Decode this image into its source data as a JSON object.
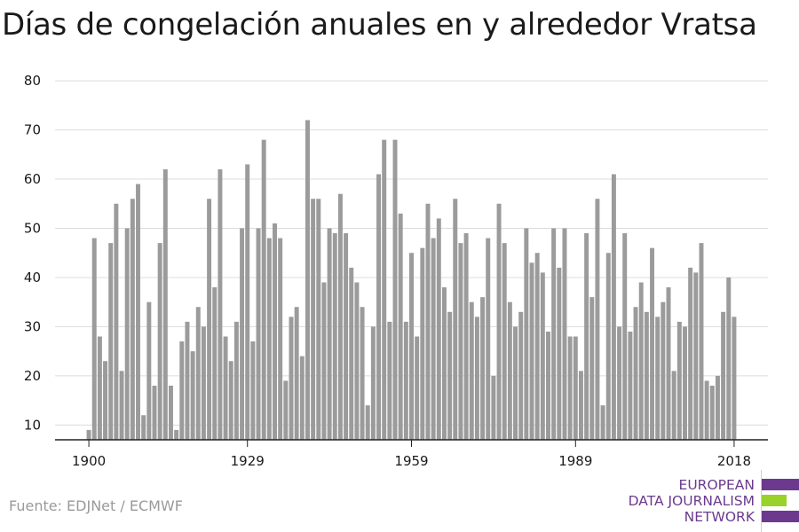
{
  "title": "Días de congelación anuales en y alrededor Vratsa",
  "source": "Fuente: EDJNet / ECMWF",
  "logo": {
    "lines": [
      "EUROPEAN",
      "DATA JOURNALISM",
      "NETWORK"
    ],
    "colors": {
      "purple": "#6b3a8e",
      "green": "#9bd12b"
    }
  },
  "colors": {
    "bar": "#9b9b9b",
    "grid": "#dcdcdc",
    "axis": "#222222",
    "text": "#1a1a1a"
  },
  "chart_data": {
    "type": "bar",
    "title": "Días de congelación anuales en y alrededor Vratsa",
    "xlabel": "",
    "ylabel": "",
    "x": [
      1900,
      1901,
      1902,
      1903,
      1904,
      1905,
      1906,
      1907,
      1908,
      1909,
      1910,
      1911,
      1912,
      1913,
      1914,
      1915,
      1916,
      1917,
      1918,
      1919,
      1920,
      1921,
      1922,
      1923,
      1924,
      1925,
      1926,
      1927,
      1928,
      1929,
      1930,
      1931,
      1932,
      1933,
      1934,
      1935,
      1936,
      1937,
      1938,
      1939,
      1940,
      1941,
      1942,
      1943,
      1944,
      1945,
      1946,
      1947,
      1948,
      1949,
      1950,
      1951,
      1952,
      1953,
      1954,
      1955,
      1956,
      1957,
      1958,
      1959,
      1960,
      1961,
      1962,
      1963,
      1964,
      1965,
      1966,
      1967,
      1968,
      1969,
      1970,
      1971,
      1972,
      1973,
      1974,
      1975,
      1976,
      1977,
      1978,
      1979,
      1980,
      1981,
      1982,
      1983,
      1984,
      1985,
      1986,
      1987,
      1988,
      1989,
      1990,
      1991,
      1992,
      1993,
      1994,
      1995,
      1996,
      1997,
      1998,
      1999,
      2000,
      2001,
      2002,
      2003,
      2004,
      2005,
      2006,
      2007,
      2008,
      2009,
      2010,
      2011,
      2012,
      2013,
      2014,
      2015,
      2016,
      2017,
      2018
    ],
    "values": [
      9,
      48,
      28,
      23,
      47,
      55,
      21,
      50,
      56,
      59,
      12,
      35,
      18,
      47,
      62,
      18,
      9,
      27,
      31,
      25,
      34,
      30,
      56,
      38,
      62,
      28,
      23,
      31,
      50,
      63,
      27,
      50,
      68,
      48,
      51,
      48,
      19,
      32,
      34,
      24,
      72,
      56,
      56,
      39,
      50,
      49,
      57,
      49,
      42,
      39,
      34,
      14,
      30,
      61,
      68,
      31,
      68,
      53,
      31,
      45,
      28,
      46,
      55,
      48,
      52,
      38,
      33,
      56,
      47,
      49,
      35,
      32,
      36,
      48,
      20,
      55,
      47,
      35,
      30,
      33,
      50,
      43,
      45,
      41,
      29,
      50,
      42,
      50,
      28,
      28,
      21,
      49,
      36,
      56,
      14,
      45,
      61,
      30,
      49,
      29,
      34,
      39,
      33,
      46,
      32,
      35,
      38,
      21,
      31,
      30,
      42,
      41,
      47,
      19,
      18,
      20,
      33,
      40,
      32
    ],
    "xticks": [
      1900,
      1929,
      1959,
      1989,
      2018
    ],
    "yticks": [
      10,
      20,
      30,
      40,
      50,
      60,
      70,
      80
    ],
    "ylim": [
      7,
      82
    ],
    "grid": true,
    "legend": "none"
  }
}
